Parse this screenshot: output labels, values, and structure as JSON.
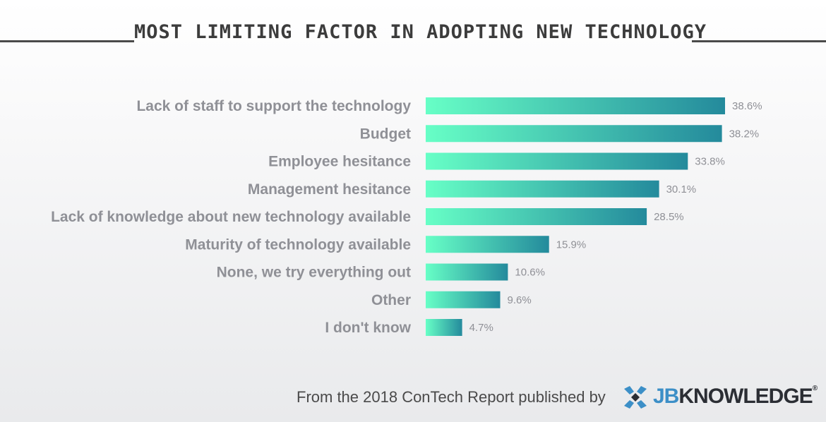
{
  "header": {
    "title": "MOST LIMITING FACTOR IN ADOPTING NEW TECHNOLOGY"
  },
  "colors": {
    "bar_start": "#67ffc6",
    "bar_end": "#248a9c",
    "label": "#8f9096",
    "title": "#3c3c3c",
    "logo_blue": "#3c8fc7",
    "logo_dark": "#2b2e34"
  },
  "chart_data": {
    "type": "bar",
    "orientation": "horizontal",
    "title": "MOST LIMITING FACTOR IN ADOPTING NEW TECHNOLOGY",
    "categories": [
      "Lack of staff to support the technology",
      "Budget",
      "Employee hesitance",
      "Management hesitance",
      "Lack of knowledge about new technology available",
      "Maturity of technology available",
      "None, we try everything out",
      "Other",
      "I don't know"
    ],
    "values": [
      38.6,
      38.2,
      33.8,
      30.1,
      28.5,
      15.9,
      10.6,
      9.6,
      4.7
    ],
    "value_labels": [
      "38.6%",
      "38.2%",
      "33.8%",
      "30.1%",
      "28.5%",
      "15.9%",
      "10.6%",
      "9.6%",
      "4.7%"
    ],
    "unit": "%",
    "xlim": [
      0,
      38.6
    ],
    "grid": false,
    "legend": "none"
  },
  "footer": {
    "source_text": "From the 2018 ConTech Report published by",
    "logo_icon": "jbknowledge-logo-icon",
    "logo_text_jb": "JB",
    "logo_text_knowledge": "KNOWLEDGE",
    "logo_reg": "®"
  }
}
